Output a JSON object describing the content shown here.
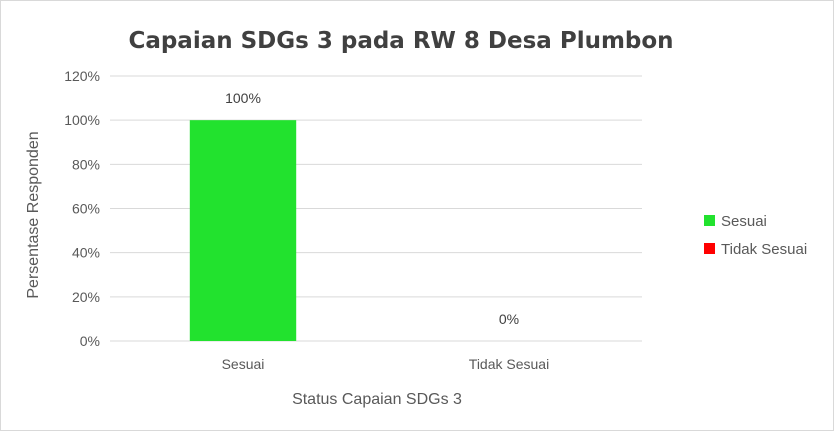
{
  "chart_data": {
    "type": "bar",
    "title": "Capaian SDGs 3 pada RW 8 Desa Plumbon",
    "xlabel": "Status Capaian SDGs 3",
    "ylabel": "Persentase Responden",
    "categories": [
      "Sesuai",
      "Tidak Sesuai"
    ],
    "values": [
      100,
      0
    ],
    "data_labels": [
      "100%",
      "0%"
    ],
    "colors": [
      "#22e22e",
      "#ff0000"
    ],
    "ylim": [
      0,
      120
    ],
    "y_ticks": [
      "0%",
      "20%",
      "40%",
      "60%",
      "80%",
      "100%",
      "120%"
    ],
    "grid": true,
    "legend_position": "right",
    "legend": [
      {
        "label": "Sesuai",
        "color": "#22e22e"
      },
      {
        "label": "Tidak Sesuai",
        "color": "#ff0000"
      }
    ]
  }
}
